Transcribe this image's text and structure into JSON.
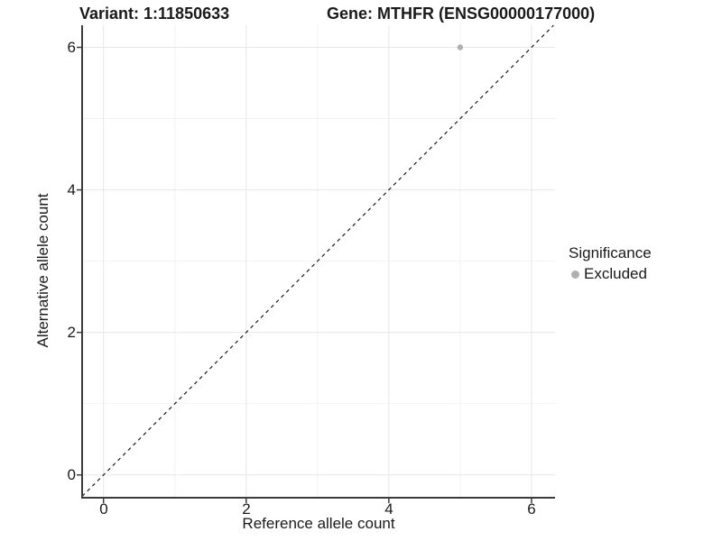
{
  "chart_data": {
    "type": "scatter",
    "title_left": "Variant: 1:11850633",
    "title_right": "Gene: MTHFR (ENSG00000177000)",
    "xlabel": "Reference allele count",
    "ylabel": "Alternative allele count",
    "xlim": [
      -0.3,
      6.33
    ],
    "ylim": [
      -0.32,
      6.31
    ],
    "xticks": [
      0,
      2,
      4,
      6
    ],
    "yticks": [
      0,
      2,
      4,
      6
    ],
    "xtick_labels": [
      "0",
      "2",
      "4",
      "6"
    ],
    "ytick_labels": [
      "0",
      "2",
      "4",
      "6"
    ],
    "x_minor": [
      1,
      3,
      5
    ],
    "y_minor": [
      1,
      3,
      5
    ],
    "grid": true,
    "reference_line": {
      "type": "identity",
      "slope": 1,
      "intercept": 0,
      "style": "dashed",
      "color": "#1a1a1a"
    },
    "series": [
      {
        "name": "Excluded",
        "color": "#b0b0b0",
        "points": [
          {
            "x": 5,
            "y": 6
          }
        ]
      }
    ],
    "legend": {
      "title": "Significance",
      "position": "right",
      "items": [
        {
          "label": "Excluded",
          "color": "#b0b0b0",
          "marker": "dot-icon"
        }
      ]
    },
    "colors": {
      "background": "#ffffff",
      "grid_major": "#e7e7e7",
      "grid_minor": "#f2f2f2",
      "axis": "#3c3c3c",
      "text": "#1a1a1a"
    }
  }
}
